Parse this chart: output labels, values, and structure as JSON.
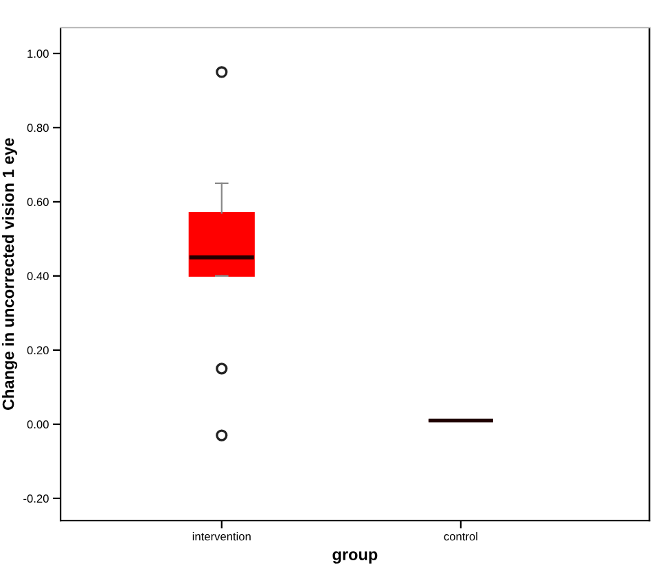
{
  "chart_data": {
    "type": "box",
    "xlabel": "group",
    "ylabel": "Change in uncorrected vision 1 eye",
    "categories": [
      "intervention",
      "control"
    ],
    "boxes": [
      {
        "low": 0.4,
        "q1": 0.4,
        "median": 0.45,
        "q3": 0.57,
        "high": 0.65,
        "outliers": [
          0.95,
          0.15,
          -0.03
        ]
      },
      {
        "low": 0.01,
        "q1": 0.01,
        "median": 0.01,
        "q3": 0.01,
        "high": 0.01
      }
    ],
    "color": "#ff0000",
    "ylim": [
      -0.26,
      1.07
    ],
    "yticks": [
      {
        "value": -0.2,
        "label": "-0.20"
      },
      {
        "value": 0.0,
        "label": "0.00"
      },
      {
        "value": 0.2,
        "label": "0.20"
      },
      {
        "value": 0.4,
        "label": "0.40"
      },
      {
        "value": 0.6,
        "label": "0.60"
      },
      {
        "value": 0.8,
        "label": "0.80"
      },
      {
        "value": 1.0,
        "label": "1.00"
      }
    ],
    "marker": "circle"
  }
}
